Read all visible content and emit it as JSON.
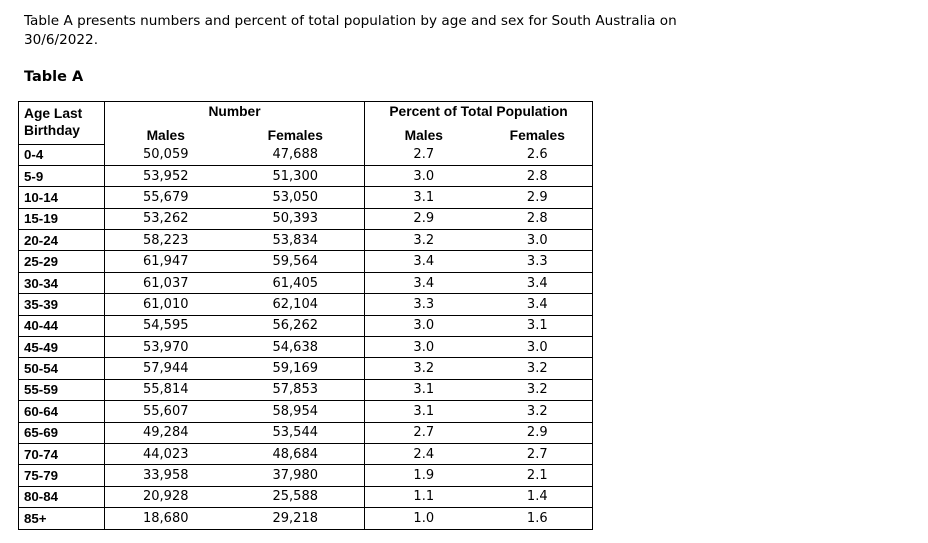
{
  "intro": "Table A presents numbers and percent of total population by age and sex for South Australia on 30/6/2022.",
  "caption": "Table A",
  "headers": {
    "age": "Age Last Birthday",
    "number": "Number",
    "percent": "Percent of Total Population",
    "males": "Males",
    "females": "Females"
  },
  "rows": [
    {
      "age": "0-4",
      "males": "50,059",
      "females": "47,688",
      "pct_males": "2.7",
      "pct_females": "2.6"
    },
    {
      "age": "5-9",
      "males": "53,952",
      "females": "51,300",
      "pct_males": "3.0",
      "pct_females": "2.8"
    },
    {
      "age": "10-14",
      "males": "55,679",
      "females": "53,050",
      "pct_males": "3.1",
      "pct_females": "2.9"
    },
    {
      "age": "15-19",
      "males": "53,262",
      "females": "50,393",
      "pct_males": "2.9",
      "pct_females": "2.8"
    },
    {
      "age": "20-24",
      "males": "58,223",
      "females": "53,834",
      "pct_males": "3.2",
      "pct_females": "3.0"
    },
    {
      "age": "25-29",
      "males": "61,947",
      "females": "59,564",
      "pct_males": "3.4",
      "pct_females": "3.3"
    },
    {
      "age": "30-34",
      "males": "61,037",
      "females": "61,405",
      "pct_males": "3.4",
      "pct_females": "3.4"
    },
    {
      "age": "35-39",
      "males": "61,010",
      "females": "62,104",
      "pct_males": "3.3",
      "pct_females": "3.4"
    },
    {
      "age": "40-44",
      "males": "54,595",
      "females": "56,262",
      "pct_males": "3.0",
      "pct_females": "3.1"
    },
    {
      "age": "45-49",
      "males": "53,970",
      "females": "54,638",
      "pct_males": "3.0",
      "pct_females": "3.0"
    },
    {
      "age": "50-54",
      "males": "57,944",
      "females": "59,169",
      "pct_males": "3.2",
      "pct_females": "3.2"
    },
    {
      "age": "55-59",
      "males": "55,814",
      "females": "57,853",
      "pct_males": "3.1",
      "pct_females": "3.2"
    },
    {
      "age": "60-64",
      "males": "55,607",
      "females": "58,954",
      "pct_males": "3.1",
      "pct_females": "3.2"
    },
    {
      "age": "65-69",
      "males": "49,284",
      "females": "53,544",
      "pct_males": "2.7",
      "pct_females": "2.9"
    },
    {
      "age": "70-74",
      "males": "44,023",
      "females": "48,684",
      "pct_males": "2.4",
      "pct_females": "2.7"
    },
    {
      "age": "75-79",
      "males": "33,958",
      "females": "37,980",
      "pct_males": "1.9",
      "pct_females": "2.1"
    },
    {
      "age": "80-84",
      "males": "20,928",
      "females": "25,588",
      "pct_males": "1.1",
      "pct_females": "1.4"
    },
    {
      "age": "85+",
      "males": "18,680",
      "females": "29,218",
      "pct_males": "1.0",
      "pct_females": "1.6"
    }
  ]
}
